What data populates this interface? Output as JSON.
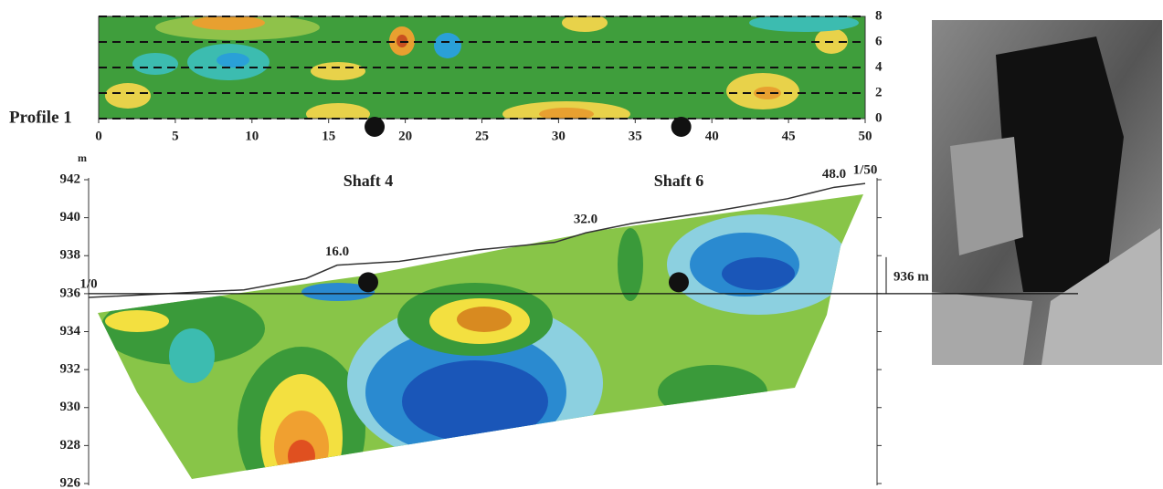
{
  "chart_data": [
    {
      "type": "contour",
      "label": "Profile 1",
      "xlim": [
        0,
        50
      ],
      "xticks": [
        0,
        5,
        10,
        15,
        20,
        25,
        30,
        35,
        40,
        45,
        50
      ],
      "ylim": [
        0,
        8
      ],
      "yticks": [
        0,
        2,
        4,
        6,
        8
      ],
      "grid": true,
      "points": {
        "x": [
          18,
          38
        ],
        "y": [
          0,
          0
        ]
      }
    },
    {
      "type": "section",
      "y_label": "m",
      "xlim": [
        0,
        50
      ],
      "ylim": [
        926,
        942
      ],
      "yticks": [
        926,
        928,
        930,
        932,
        934,
        936,
        938,
        940,
        942
      ],
      "shafts": {
        "names": [
          "Shaft 4",
          "Shaft 6"
        ],
        "x": [
          18,
          38
        ],
        "y": [
          936.6,
          936.6
        ]
      },
      "stations": [
        {
          "value": 0,
          "label": "1/0"
        },
        {
          "value": 16,
          "label": "16.0"
        },
        {
          "value": 32,
          "label": "32.0"
        },
        {
          "value": 48,
          "label": "48.0"
        },
        {
          "value": 50,
          "label": "1/50"
        }
      ],
      "ground": {
        "x": [
          0,
          5,
          10,
          14,
          16,
          20,
          25,
          30,
          32,
          35,
          40,
          45,
          48,
          50
        ],
        "y": [
          935.8,
          936.0,
          936.2,
          936.8,
          937.5,
          937.7,
          938.3,
          938.7,
          939.2,
          939.7,
          940.3,
          941.0,
          941.6,
          941.8
        ]
      },
      "reference_level": 936,
      "reference_label": "936 m"
    }
  ]
}
